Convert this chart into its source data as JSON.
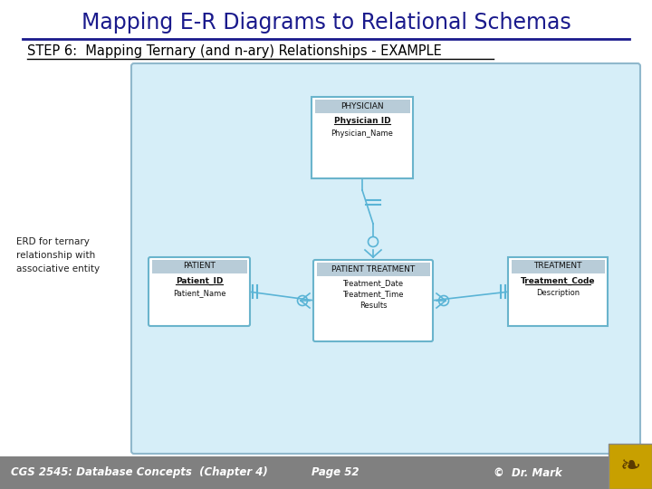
{
  "title": "Mapping E-R Diagrams to Relational Schemas",
  "subtitle": "STEP 6:  Mapping Ternary (and n-ary) Relationships - EXAMPLE",
  "title_color": "#1a1a8c",
  "subtitle_color": "#000000",
  "bg_color": "#ffffff",
  "diagram_bg": "#d6eef8",
  "box_border": "#5ab4d6",
  "line_color": "#5ab4d6",
  "footer_bg": "#808080",
  "footer_text": "CGS 2545: Database Concepts  (Chapter 4)",
  "footer_page": "Page 52",
  "footer_copy": "©  Dr. Mark",
  "left_label": "ERD for ternary\nrelationship with\nassociative entity",
  "physician_title": "PHYSICIAN",
  "physician_pk": "Physician ID",
  "physician_attrs": [
    "Physician_Name"
  ],
  "patient_title": "PATIENT",
  "patient_pk": "Patient_ID",
  "patient_attrs": [
    "Patient_Name"
  ],
  "pt_title": "PATIENT TREATMENT",
  "pt_attrs": [
    "Treatment_Date",
    "Treatment_Time",
    "Results"
  ],
  "treatment_title": "TREATMENT",
  "treatment_pk": "Treatment_Code",
  "treatment_attrs": [
    "Description"
  ]
}
